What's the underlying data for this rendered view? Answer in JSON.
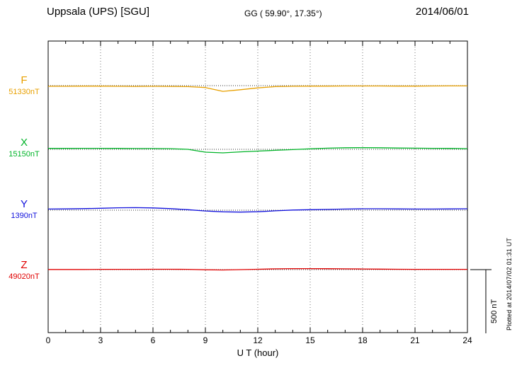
{
  "header": {
    "station": "Uppsala (UPS)  [SGU]",
    "coords": "GG ( 59.90°,  17.35°)",
    "date": "2014/06/01"
  },
  "footer": {
    "plotted_at": "Plotted at 2014/07/02 01:31 UT"
  },
  "chart_data": {
    "type": "line",
    "title": "Uppsala (UPS) [SGU] magnetogram for 2014/06/01",
    "xlabel": "U T (hour)",
    "xlim": [
      0,
      24
    ],
    "x_ticks": [
      0,
      3,
      6,
      9,
      12,
      15,
      18,
      21,
      24
    ],
    "grid": "vertical dotted gridlines every 3 hours; dotted horizontal baseline per trace",
    "legend_position": "left",
    "y_unit": "nT",
    "scale_bar": {
      "label": "500 nT",
      "nT": 500
    },
    "x_hours": [
      0,
      1,
      2,
      3,
      4,
      5,
      6,
      7,
      8,
      9,
      10,
      11,
      12,
      13,
      14,
      15,
      16,
      17,
      18,
      19,
      20,
      21,
      22,
      23,
      24
    ],
    "series": [
      {
        "name": "F",
        "baseline_label": "51330nT",
        "baseline_nT": 51330,
        "color": "#e8a000",
        "offsets_nT": [
          -5,
          -5,
          -4,
          -4,
          -5,
          -6,
          -5,
          -6,
          -8,
          -15,
          -45,
          -32,
          -18,
          -8,
          -5,
          -4,
          -4,
          -3,
          -3,
          -3,
          -4,
          -4,
          -3,
          -2,
          -2
        ]
      },
      {
        "name": "X",
        "baseline_label": "15150nT",
        "baseline_nT": 15150,
        "color": "#00b428",
        "offsets_nT": [
          7,
          7,
          8,
          8,
          7,
          6,
          6,
          5,
          0,
          -22,
          -28,
          -20,
          -14,
          -8,
          -2,
          4,
          9,
          12,
          13,
          12,
          10,
          9,
          8,
          7,
          5
        ]
      },
      {
        "name": "Y",
        "baseline_label": "1390nT",
        "baseline_nT": 1390,
        "color": "#1010dc",
        "offsets_nT": [
          9,
          10,
          12,
          15,
          19,
          20,
          18,
          12,
          4,
          -6,
          -13,
          -15,
          -12,
          -5,
          1,
          4,
          6,
          9,
          11,
          11,
          10,
          9,
          9,
          10,
          11
        ]
      },
      {
        "name": "Z",
        "baseline_label": "49020nT",
        "baseline_nT": 49020,
        "color": "#e00000",
        "offsets_nT": [
          1,
          1,
          1,
          2,
          2,
          2,
          3,
          3,
          2,
          -1,
          -3,
          0,
          3,
          6,
          8,
          8,
          7,
          6,
          5,
          4,
          3,
          2,
          2,
          2,
          2
        ]
      }
    ]
  }
}
